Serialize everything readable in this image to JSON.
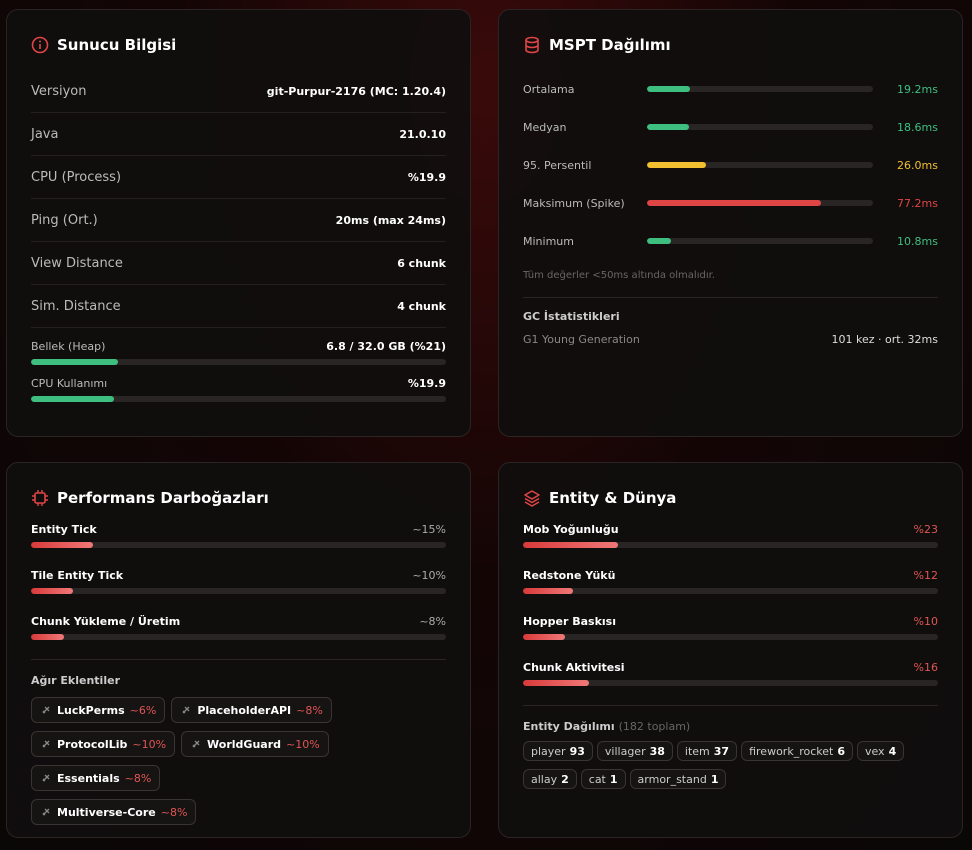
{
  "server": {
    "title": "Sunucu Bilgisi",
    "rows": [
      {
        "label": "Versiyon",
        "value": "git-Purpur-2176 (MC: 1.20.4)"
      },
      {
        "label": "Java",
        "value": "21.0.10"
      },
      {
        "label": "CPU (Process)",
        "value": "%19.9"
      },
      {
        "label": "Ping (Ort.)",
        "value": "20ms (max 24ms)"
      },
      {
        "label": "View Distance",
        "value": "6 chunk"
      },
      {
        "label": "Sim. Distance",
        "value": "4 chunk"
      }
    ],
    "bars": [
      {
        "label": "Bellek (Heap)",
        "value_label": "6.8 / 32.0 GB (%21)",
        "value": 21
      },
      {
        "label": "CPU Kullanımı",
        "value_label": "%19.9",
        "value": 19.9
      }
    ]
  },
  "mspt": {
    "title": "MSPT Dağılımı",
    "rows": [
      {
        "label": "Ortalama",
        "value": 19.2,
        "value_label": "19.2ms",
        "color": "#3fbf7f"
      },
      {
        "label": "Medyan",
        "value": 18.6,
        "value_label": "18.6ms",
        "color": "#3fbf7f"
      },
      {
        "label": "95. Persentil",
        "value": 26.0,
        "value_label": "26.0ms",
        "color": "#f0c030"
      },
      {
        "label": "Maksimum (Spike)",
        "value": 77.2,
        "value_label": "77.2ms",
        "color": "#e04545"
      },
      {
        "label": "Minimum",
        "value": 10.8,
        "value_label": "10.8ms",
        "color": "#3fbf7f"
      }
    ],
    "note": "Tüm değerler <50ms altında olmalıdır.",
    "gc": {
      "title": "GC İstatistikleri",
      "rows": [
        {
          "label": "G1 Young Generation",
          "value": "101 kez · ort. 32ms"
        }
      ]
    }
  },
  "perf": {
    "title": "Performans Darboğazları",
    "rows": [
      {
        "label": "Entity Tick",
        "value": 15,
        "value_label": "~15%"
      },
      {
        "label": "Tile Entity Tick",
        "value": 10,
        "value_label": "~10%"
      },
      {
        "label": "Chunk Yükleme / Üretim",
        "value": 8,
        "value_label": "~8%"
      }
    ],
    "plugins_title": "Ağır Eklentiler",
    "plugins": [
      {
        "name": "LuckPerms",
        "value": "~6%"
      },
      {
        "name": "PlaceholderAPI",
        "value": "~8%"
      },
      {
        "name": "ProtocolLib",
        "value": "~10%"
      },
      {
        "name": "WorldGuard",
        "value": "~10%"
      },
      {
        "name": "Essentials",
        "value": "~8%"
      },
      {
        "name": "Multiverse-Core",
        "value": "~8%"
      }
    ]
  },
  "entity": {
    "title": "Entity & Dünya",
    "rows": [
      {
        "label": "Mob Yoğunluğu",
        "value": 23,
        "value_label": "%23"
      },
      {
        "label": "Redstone Yükü",
        "value": 12,
        "value_label": "%12"
      },
      {
        "label": "Hopper Baskısı",
        "value": 10,
        "value_label": "%10"
      },
      {
        "label": "Chunk Aktivitesi",
        "value": 16,
        "value_label": "%16"
      }
    ],
    "dist_title": "Entity Dağılımı",
    "dist_total": "(182 toplam)",
    "tags": [
      {
        "name": "player",
        "count": 93
      },
      {
        "name": "villager",
        "count": 38
      },
      {
        "name": "item",
        "count": 37
      },
      {
        "name": "firework_rocket",
        "count": 6
      },
      {
        "name": "vex",
        "count": 4
      },
      {
        "name": "allay",
        "count": 2
      },
      {
        "name": "cat",
        "count": 1
      },
      {
        "name": "armor_stand",
        "count": 1
      }
    ]
  }
}
